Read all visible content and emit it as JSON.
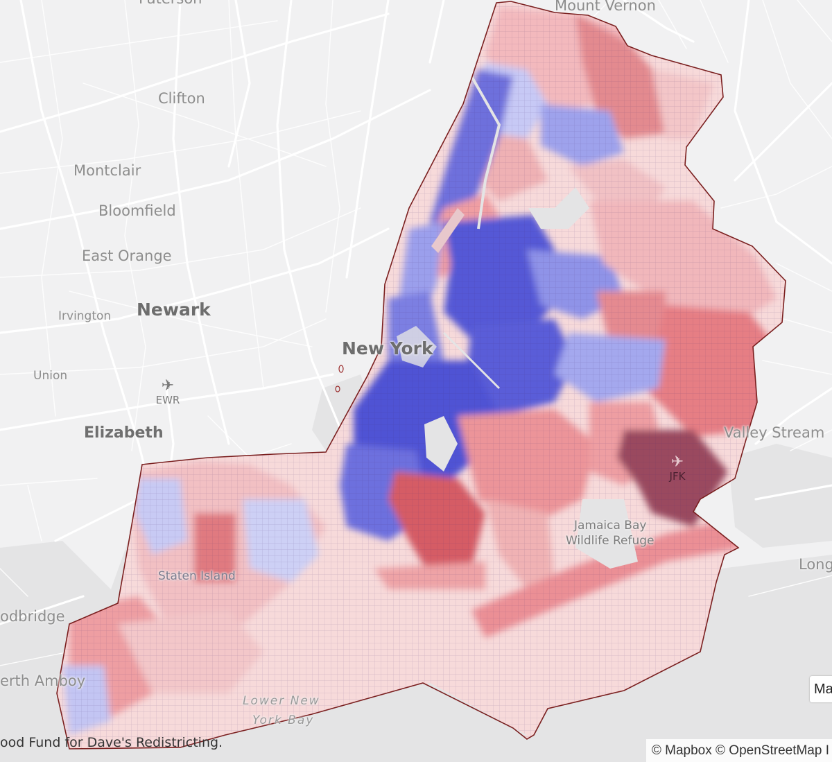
{
  "labels": {
    "paterson": "Paterson",
    "mount_vernon": "Mount Vernon",
    "clifton": "Clifton",
    "montclair": "Montclair",
    "bloomfield": "Bloomfield",
    "east_orange": "East Orange",
    "irvington": "Irvington",
    "newark": "Newark",
    "union": "Union",
    "elizabeth": "Elizabeth",
    "woodbridge": "odbridge",
    "perth_amboy": "erth Amboy",
    "new_york": "New York",
    "staten_island": "Staten Island",
    "valley_stream": "Valley Stream",
    "long_beach": "Long",
    "jamaica_bay": "Jamaica Bay",
    "wildlife_refuge": "Wildlife Refuge",
    "lower_bay_1": "Lower New",
    "lower_bay_2": "York Bay"
  },
  "airports": [
    {
      "code": "EWR"
    },
    {
      "code": "JFK"
    }
  ],
  "attribution_left": "ood Fund for Dave's Redistricting.",
  "attribution_right": "© Mapbox © OpenStreetMap  I",
  "map_control_label": "Ma",
  "colors": {
    "land": "#f1f1f2",
    "water": "#e4e4e5",
    "roads": "#ffffff",
    "boundary": "#7a1f1f",
    "dem_strong": "#5254d6",
    "dem_light": "#c8cbf4",
    "rep_strong": "#d9474c",
    "rep_light": "#f4c3c4",
    "rep_dark": "#8e4a5c"
  }
}
